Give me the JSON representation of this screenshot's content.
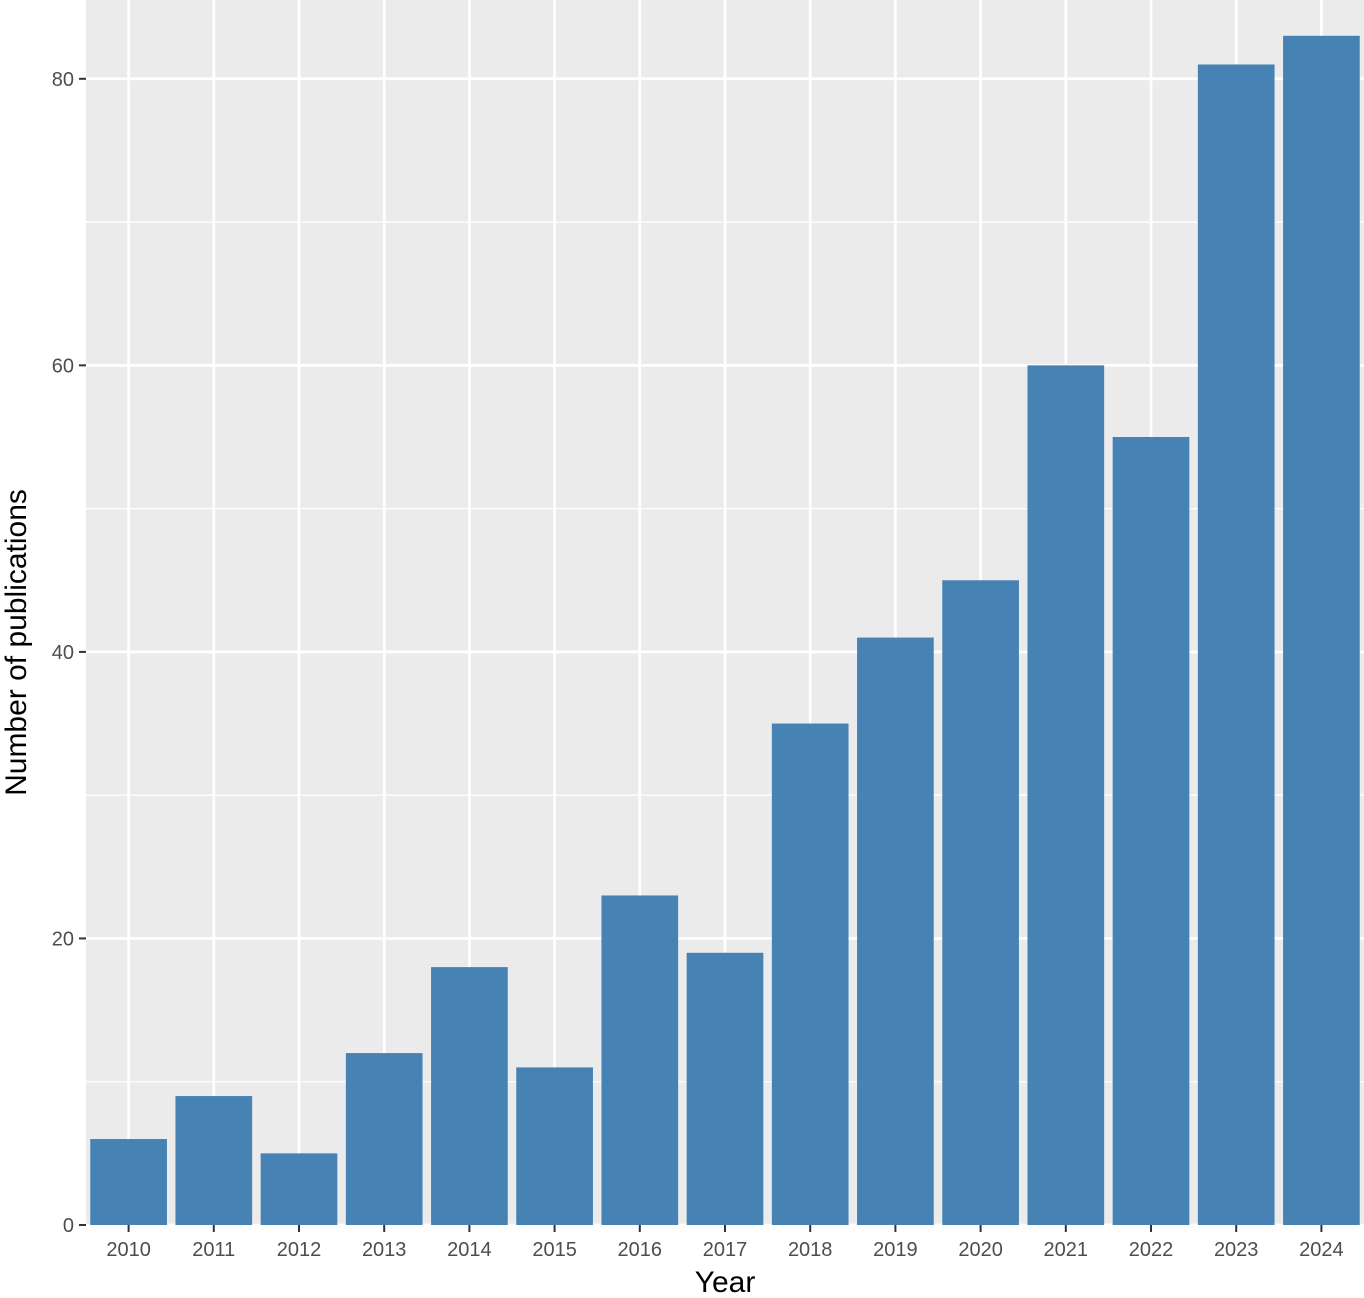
{
  "chart_data": {
    "type": "bar",
    "categories": [
      "2010",
      "2011",
      "2012",
      "2013",
      "2014",
      "2015",
      "2016",
      "2017",
      "2018",
      "2019",
      "2020",
      "2021",
      "2022",
      "2023",
      "2024"
    ],
    "values": [
      6,
      9,
      5,
      12,
      18,
      11,
      23,
      19,
      35,
      41,
      45,
      60,
      55,
      81,
      83
    ],
    "xlabel": "Year",
    "ylabel": "Number of publications",
    "ylim": [
      0,
      85.5
    ],
    "yticks": [
      0,
      20,
      40,
      60,
      80
    ],
    "grid": true,
    "colors": {
      "bar": "#4682b4",
      "panel": "#ebebeb",
      "grid": "#ffffff"
    }
  }
}
